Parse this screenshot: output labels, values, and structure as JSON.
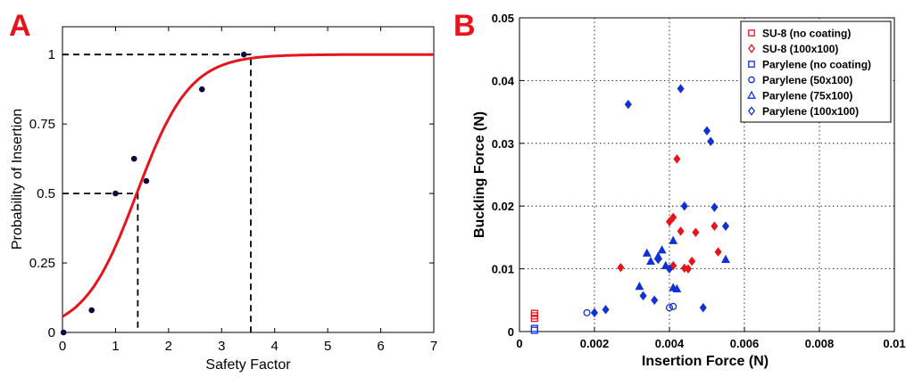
{
  "chart_data": [
    {
      "panel_label": "A",
      "type": "line",
      "xlabel": "Safety Factor",
      "ylabel": "Probability of Insertion",
      "xlim": [
        0,
        7
      ],
      "ylim": [
        0,
        1.1
      ],
      "xticks": [
        "0",
        "1",
        "2",
        "3",
        "4",
        "5",
        "6",
        "7"
      ],
      "yticks": [
        {
          "v": 0,
          "t": "0"
        },
        {
          "v": 0.25,
          "t": "0.25"
        },
        {
          "v": 0.5,
          "t": "0.5"
        },
        {
          "v": 0.75,
          "t": "0.75"
        },
        {
          "v": 1,
          "t": "1"
        }
      ],
      "grid": false,
      "curve_color": "#e8141b",
      "curve": {
        "type": "logistic",
        "midpoint": 1.4,
        "slope": 2.0
      },
      "points_color": "#0a0a3c",
      "points": [
        {
          "x": 0.02,
          "y": 0
        },
        {
          "x": 0.55,
          "y": 0.08
        },
        {
          "x": 1.0,
          "y": 0.5
        },
        {
          "x": 1.35,
          "y": 0.625
        },
        {
          "x": 1.58,
          "y": 0.545
        },
        {
          "x": 2.63,
          "y": 0.875
        },
        {
          "x": 3.42,
          "y": 1.0
        }
      ],
      "reference_lines": [
        {
          "x": 1.42,
          "y": 0.5
        },
        {
          "x": 3.55,
          "y": 1.0
        }
      ]
    },
    {
      "panel_label": "B",
      "type": "scatter",
      "xlabel": "Insertion Force (N)",
      "ylabel": "Buckling Force (N)",
      "xlim": [
        0,
        0.01
      ],
      "ylim": [
        0,
        0.05
      ],
      "xticks": [
        {
          "v": 0,
          "t": "0"
        },
        {
          "v": 0.002,
          "t": "0.002"
        },
        {
          "v": 0.004,
          "t": "0.004"
        },
        {
          "v": 0.006,
          "t": "0.006"
        },
        {
          "v": 0.008,
          "t": "0.008"
        },
        {
          "v": 0.01,
          "t": "0.01"
        }
      ],
      "yticks": [
        {
          "v": 0,
          "t": "0"
        },
        {
          "v": 0.01,
          "t": "0.01"
        },
        {
          "v": 0.02,
          "t": "0.02"
        },
        {
          "v": 0.03,
          "t": "0.03"
        },
        {
          "v": 0.04,
          "t": "0.04"
        },
        {
          "v": 0.05,
          "t": "0.05"
        }
      ],
      "grid": true,
      "legend_position": "top-right",
      "series": [
        {
          "name": "SU-8 (no coating)",
          "color": "#e8141b",
          "marker": "square-open",
          "points": [
            {
              "x": 0.0004,
              "y": 0.0021
            },
            {
              "x": 0.0004,
              "y": 0.0025
            },
            {
              "x": 0.0004,
              "y": 0.0029
            }
          ]
        },
        {
          "name": "SU-8 (100x100)",
          "color": "#e8141b",
          "marker": "diamond-filled",
          "points": [
            {
              "x": 0.0027,
              "y": 0.0102
            },
            {
              "x": 0.004,
              "y": 0.0175
            },
            {
              "x": 0.0041,
              "y": 0.0182
            },
            {
              "x": 0.0041,
              "y": 0.0105
            },
            {
              "x": 0.0042,
              "y": 0.0275
            },
            {
              "x": 0.0043,
              "y": 0.016
            },
            {
              "x": 0.0044,
              "y": 0.0101
            },
            {
              "x": 0.0045,
              "y": 0.01
            },
            {
              "x": 0.0046,
              "y": 0.0112
            },
            {
              "x": 0.0047,
              "y": 0.0158
            },
            {
              "x": 0.0052,
              "y": 0.0168
            },
            {
              "x": 0.0053,
              "y": 0.0127
            }
          ]
        },
        {
          "name": "Parylene (no coating)",
          "color": "#1131d4",
          "marker": "square-open",
          "points": [
            {
              "x": 0.0004,
              "y": 0.0002
            },
            {
              "x": 0.0004,
              "y": 0.0005
            }
          ]
        },
        {
          "name": "Parylene (50x100)",
          "color": "#1131d4",
          "marker": "circle-open",
          "points": [
            {
              "x": 0.0018,
              "y": 0.003
            },
            {
              "x": 0.004,
              "y": 0.0038
            },
            {
              "x": 0.0041,
              "y": 0.004
            }
          ]
        },
        {
          "name": "Parylene (75x100)",
          "color": "#1131d4",
          "marker": "triangle-filled",
          "points": [
            {
              "x": 0.0032,
              "y": 0.0072
            },
            {
              "x": 0.0034,
              "y": 0.0125
            },
            {
              "x": 0.0035,
              "y": 0.0112
            },
            {
              "x": 0.0037,
              "y": 0.012
            },
            {
              "x": 0.0038,
              "y": 0.013
            },
            {
              "x": 0.0039,
              "y": 0.0105
            },
            {
              "x": 0.0041,
              "y": 0.0145
            },
            {
              "x": 0.0041,
              "y": 0.007
            },
            {
              "x": 0.0042,
              "y": 0.0068
            },
            {
              "x": 0.0055,
              "y": 0.0115
            }
          ]
        },
        {
          "name": "Parylene (100x100)",
          "color": "#1131d4",
          "marker": "diamond-filled",
          "points": [
            {
              "x": 0.002,
              "y": 0.003
            },
            {
              "x": 0.0023,
              "y": 0.0035
            },
            {
              "x": 0.0029,
              "y": 0.0362
            },
            {
              "x": 0.0033,
              "y": 0.0057
            },
            {
              "x": 0.0036,
              "y": 0.005
            },
            {
              "x": 0.0037,
              "y": 0.0115
            },
            {
              "x": 0.004,
              "y": 0.01
            },
            {
              "x": 0.0043,
              "y": 0.0387
            },
            {
              "x": 0.0044,
              "y": 0.02
            },
            {
              "x": 0.0049,
              "y": 0.0038
            },
            {
              "x": 0.005,
              "y": 0.032
            },
            {
              "x": 0.0051,
              "y": 0.0303
            },
            {
              "x": 0.0052,
              "y": 0.0198
            },
            {
              "x": 0.0055,
              "y": 0.0168
            }
          ]
        }
      ]
    }
  ]
}
